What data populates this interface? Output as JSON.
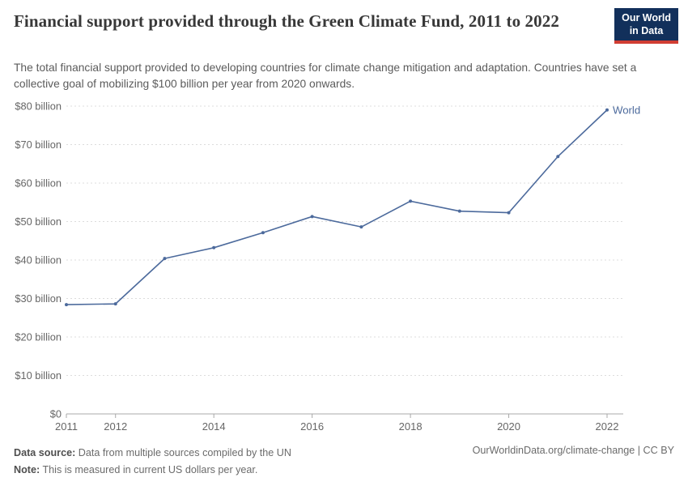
{
  "header": {
    "title": "Financial support provided through the Green Climate Fund, 2011 to 2022",
    "subtitle": "The total financial support provided to developing countries for climate change mitigation and adaptation. Countries have set a collective goal of mobilizing $100 billion per year from 2020 onwards.",
    "logo": {
      "line1": "Our World",
      "line2": "in Data",
      "bg_color": "#12305b",
      "accent_color": "#d13d33"
    }
  },
  "chart_data": {
    "type": "line",
    "title": "Financial support provided through the Green Climate Fund, 2011 to 2022",
    "xlabel": "",
    "ylabel": "",
    "xlim": [
      2011,
      2022
    ],
    "ylim": [
      0,
      80
    ],
    "grid": "horizontal-dashed",
    "legend_position": "end-of-line-label",
    "x": [
      2011,
      2012,
      2013,
      2014,
      2015,
      2016,
      2017,
      2018,
      2019,
      2020,
      2021,
      2022
    ],
    "series": [
      {
        "name": "World",
        "color": "#4C6A9C",
        "values": [
          28.4,
          28.6,
          40.4,
          43.2,
          47.1,
          51.3,
          48.6,
          55.3,
          52.7,
          52.3,
          66.9,
          79.0
        ]
      }
    ],
    "x_tick_labels": [
      "2011",
      "2012",
      "2014",
      "2016",
      "2018",
      "2020",
      "2022"
    ],
    "x_tick_years": [
      2011,
      2012,
      2014,
      2016,
      2018,
      2020,
      2022
    ],
    "y_ticks": [
      {
        "value": 0,
        "label": "$0"
      },
      {
        "value": 10,
        "label": "$10 billion"
      },
      {
        "value": 20,
        "label": "$20 billion"
      },
      {
        "value": 30,
        "label": "$30 billion"
      },
      {
        "value": 40,
        "label": "$40 billion"
      },
      {
        "value": 50,
        "label": "$50 billion"
      },
      {
        "value": 60,
        "label": "$60 billion"
      },
      {
        "value": 70,
        "label": "$70 billion"
      },
      {
        "value": 80,
        "label": "$80 billion"
      }
    ],
    "colors": {
      "grid": "#dcdcdc",
      "axis": "#a8a8a8",
      "tick_label": "#666666"
    }
  },
  "footer": {
    "datasource_label": "Data source:",
    "datasource_text": " Data from multiple sources compiled by the UN",
    "note_label": "Note:",
    "note_text": " This is measured in current US dollars per year.",
    "attribution": "OurWorldinData.org/climate-change | CC BY"
  }
}
